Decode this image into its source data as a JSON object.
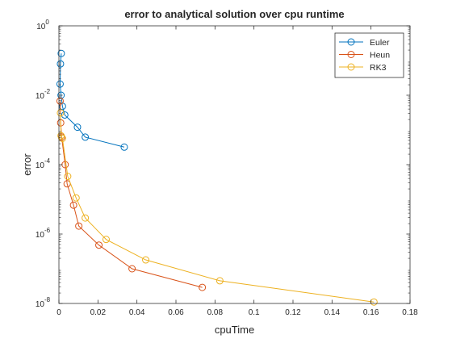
{
  "chart_data": {
    "type": "line",
    "title": "error to analytical solution over cpu runtime",
    "xlabel": "cpuTime",
    "ylabel": "error",
    "xlim": [
      0,
      0.18
    ],
    "ylim": [
      1e-08,
      1
    ],
    "yscale": "log",
    "grid": false,
    "legend_position": "top-right",
    "x_ticks": [
      0,
      0.02,
      0.04,
      0.06,
      0.08,
      0.1,
      0.12,
      0.14,
      0.16,
      0.18
    ],
    "x_tick_labels": [
      "0",
      "0.02",
      "0.04",
      "0.06",
      "0.08",
      "0.1",
      "0.12",
      "0.14",
      "0.16",
      "0.18"
    ],
    "y_ticks": [
      1e-08,
      1e-06,
      0.0001,
      0.01,
      1
    ],
    "y_tick_labels": [
      {
        "base": "10",
        "exp": "-8"
      },
      {
        "base": "10",
        "exp": "-6"
      },
      {
        "base": "10",
        "exp": "-4"
      },
      {
        "base": "10",
        "exp": "-2"
      },
      {
        "base": "10",
        "exp": "0"
      }
    ],
    "series": [
      {
        "name": "Euler",
        "color": "#0072BD",
        "marker": "circle",
        "x": [
          0.0012,
          0.0008,
          0.0006,
          0.0011,
          0.0018,
          0.003,
          0.0095,
          0.0135,
          0.0335
        ],
        "y": [
          0.16,
          0.08,
          0.021,
          0.01,
          0.0048,
          0.0027,
          0.0012,
          0.00062,
          0.00032
        ]
      },
      {
        "name": "Heun",
        "color": "#D95319",
        "marker": "circle",
        "x": [
          0.0006,
          0.0009,
          0.0014,
          0.0032,
          0.0042,
          0.0075,
          0.0102,
          0.0205,
          0.0375,
          0.0735
        ],
        "y": [
          0.0068,
          0.0016,
          0.00062,
          0.0001,
          2.8e-05,
          6.8e-06,
          1.7e-06,
          4.8e-07,
          1e-07,
          2.9e-08
        ]
      },
      {
        "name": "RK3",
        "color": "#EDB120",
        "marker": "circle",
        "x": [
          0.0008,
          0.0011,
          0.0018,
          0.0045,
          0.0088,
          0.0135,
          0.0242,
          0.0445,
          0.0825,
          0.1615
        ],
        "y": [
          0.0031,
          0.00068,
          0.00057,
          4.6e-05,
          1.1e-05,
          2.9e-06,
          7e-07,
          1.8e-07,
          4.5e-08,
          1.1e-08
        ]
      }
    ]
  }
}
